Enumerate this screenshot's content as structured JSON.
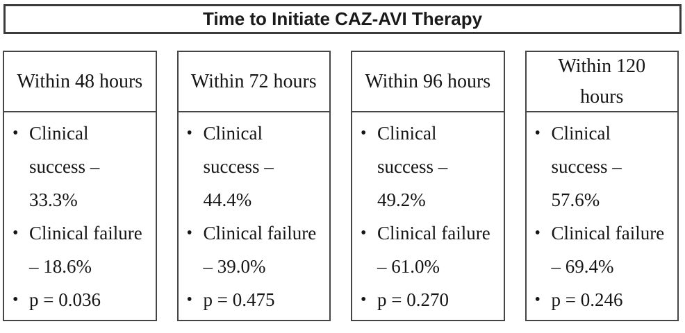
{
  "title": "Time to Initiate CAZ-AVI Therapy",
  "bullet_char": "•",
  "colors": {
    "background": "#ffffff",
    "border": "#454545",
    "title_border": "#3b3b3b",
    "text": "#1c1c1c"
  },
  "columns": [
    {
      "header": "Within 48 hours",
      "bullets": [
        "Clinical\nsuccess –\n33.3%",
        "Clinical failure\n– 18.6%",
        "p = 0.036"
      ],
      "clinical_success": "33.3%",
      "clinical_failure": "18.6%",
      "p_value": "0.036"
    },
    {
      "header": "Within 72 hours",
      "bullets": [
        "Clinical\nsuccess –\n44.4%",
        "Clinical failure\n– 39.0%",
        "p = 0.475"
      ],
      "clinical_success": "44.4%",
      "clinical_failure": "39.0%",
      "p_value": "0.475"
    },
    {
      "header": "Within 96 hours",
      "bullets": [
        "Clinical\nsuccess –\n49.2%",
        "Clinical failure\n– 61.0%",
        "p = 0.270"
      ],
      "clinical_success": "49.2%",
      "clinical_failure": "61.0%",
      "p_value": "0.270"
    },
    {
      "header": "Within 120\nhours",
      "bullets": [
        "Clinical\nsuccess –\n57.6%",
        "Clinical failure\n– 69.4%",
        "p = 0.246"
      ],
      "clinical_success": "57.6%",
      "clinical_failure": "69.4%",
      "p_value": "0.246"
    }
  ]
}
